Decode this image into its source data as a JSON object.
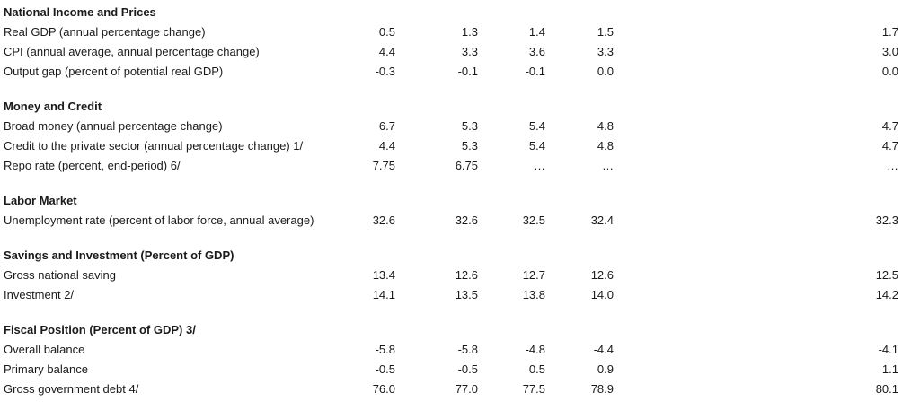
{
  "page": {
    "background_color": "#ffffff",
    "text_color": "#1a1a1a"
  },
  "table": {
    "column_count": 5,
    "sections": [
      {
        "header": "National Income and Prices",
        "rows": [
          {
            "label": "Real GDP (annual percentage change)",
            "values": [
              "0.5",
              "1.3",
              "1.4",
              "1.5",
              "1.7"
            ]
          },
          {
            "label": "CPI (annual average, annual percentage change)",
            "values": [
              "4.4",
              "3.3",
              "3.6",
              "3.3",
              "3.0"
            ]
          },
          {
            "label": "Output gap (percent of potential real GDP)",
            "values": [
              "-0.3",
              "-0.1",
              "-0.1",
              "0.0",
              "0.0"
            ]
          }
        ]
      },
      {
        "header": "Money and Credit",
        "rows": [
          {
            "label": "Broad money (annual percentage change)",
            "values": [
              "6.7",
              "5.3",
              "5.4",
              "4.8",
              "4.7"
            ]
          },
          {
            "label": "Credit to the private sector (annual percentage change) 1/",
            "values": [
              "4.4",
              "5.3",
              "5.4",
              "4.8",
              "4.7"
            ]
          },
          {
            "label": "Repo rate (percent, end-period) 6/",
            "values": [
              "7.75",
              "6.75",
              "…",
              "…",
              "…"
            ]
          }
        ]
      },
      {
        "header": "Labor Market",
        "rows": [
          {
            "label": "Unemployment rate (percent of labor force, annual average)",
            "values": [
              "32.6",
              "32.6",
              "32.5",
              "32.4",
              "32.3"
            ]
          }
        ]
      },
      {
        "header": "Savings and Investment (Percent of GDP)",
        "rows": [
          {
            "label": "Gross national saving",
            "values": [
              "13.4",
              "12.6",
              "12.7",
              "12.6",
              "12.5"
            ]
          },
          {
            "label": "Investment 2/",
            "values": [
              "14.1",
              "13.5",
              "13.8",
              "14.0",
              "14.2"
            ]
          }
        ]
      },
      {
        "header": "Fiscal Position (Percent of GDP) 3/",
        "rows": [
          {
            "label": "Overall balance",
            "values": [
              "-5.8",
              "-5.8",
              "-4.8",
              "-4.4",
              "-4.1"
            ]
          },
          {
            "label": "Primary balance",
            "values": [
              "-0.5",
              "-0.5",
              "0.5",
              "0.9",
              "1.1"
            ]
          },
          {
            "label": "Gross government debt 4/",
            "values": [
              "76.0",
              "77.0",
              "77.5",
              "78.9",
              "80.1"
            ]
          }
        ]
      }
    ]
  }
}
